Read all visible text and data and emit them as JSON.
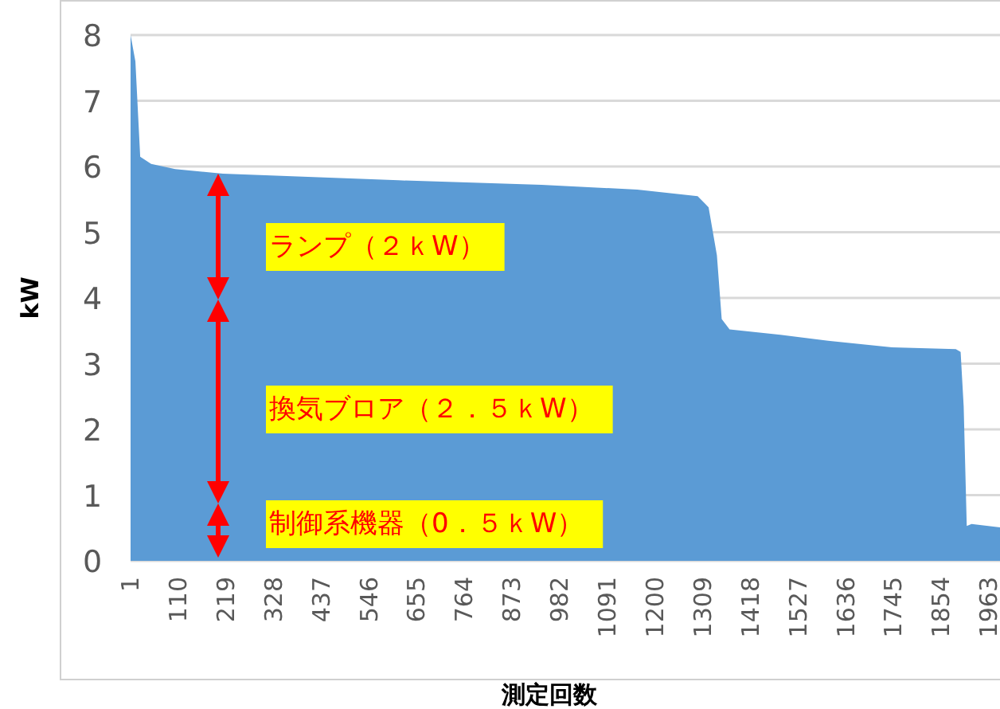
{
  "chart_data": {
    "type": "area",
    "xlabel": "測定回数",
    "ylabel": "kW",
    "x": [
      1,
      12,
      23,
      48,
      103,
      212,
      613,
      940,
      1159,
      1297,
      1322,
      1341,
      1352,
      1370,
      1486,
      1595,
      1741,
      1887,
      1898,
      1905,
      1912,
      1923,
      1988
    ],
    "series": [
      {
        "color": "#5b9bd5",
        "values": [
          8,
          7.6,
          6.15,
          6.04,
          5.96,
          5.89,
          5.79,
          5.72,
          5.65,
          5.55,
          5.38,
          4.65,
          3.68,
          3.52,
          3.44,
          3.35,
          3.25,
          3.22,
          3.18,
          2.35,
          0.53,
          0.56,
          0.51
        ]
      }
    ],
    "xlim": [
      1,
      1988
    ],
    "xticks": [
      1,
      110,
      219,
      328,
      437,
      546,
      655,
      764,
      873,
      982,
      1091,
      1200,
      1309,
      1418,
      1527,
      1636,
      1745,
      1854,
      1963
    ],
    "ylim": [
      0,
      8
    ],
    "yticks": [
      0,
      1,
      2,
      3,
      4,
      5,
      6,
      7,
      8
    ],
    "grid": "y",
    "annotations": [
      "ランプ（２ｋW）",
      "換気ブロア（２．５ｋW）",
      "制御系機器（0．５ｋW）"
    ]
  }
}
